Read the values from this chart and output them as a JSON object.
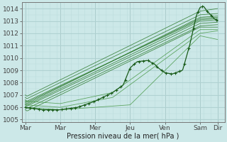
{
  "xlabel": "Pression niveau de la mer( hPa )",
  "bg_color": "#cce8e8",
  "grid_color_major": "#aacccc",
  "grid_color_minor": "#bbdddd",
  "line_color_dark": "#1a5c1a",
  "line_color_mid": "#2d7a2d",
  "line_color_light": "#4a9a4a",
  "ylim": [
    1004.8,
    1014.5
  ],
  "ytick_vals": [
    1005,
    1006,
    1007,
    1008,
    1009,
    1010,
    1011,
    1012,
    1013,
    1014
  ],
  "xtick_labels": [
    "Mar",
    "Mar",
    "Mer",
    "Jeu",
    "Ven",
    "Sam",
    "Dir"
  ],
  "xtick_pos": [
    0.0,
    1.0,
    2.0,
    3.0,
    4.0,
    5.0,
    5.5
  ],
  "xlim": [
    -0.1,
    5.7
  ],
  "xlabel_fontsize": 7.0,
  "ytick_fontsize": 6.5,
  "xtick_fontsize": 6.5
}
